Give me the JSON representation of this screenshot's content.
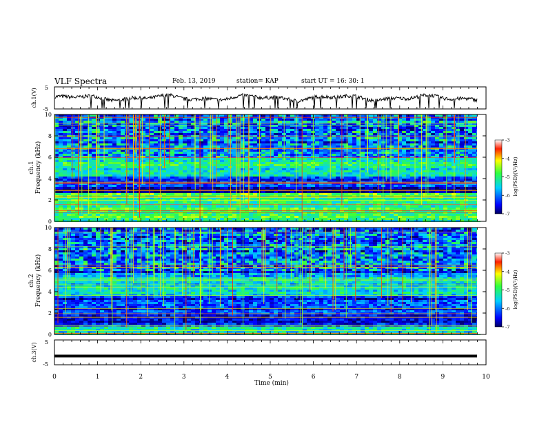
{
  "header": {
    "title": "VLF Spectra",
    "date": "Feb. 13, 2019",
    "station": "station= KAP",
    "start_ut": "start  UT =   16: 30: 1"
  },
  "chart_data": [
    {
      "type": "line",
      "ylabel": "ch.1(V)",
      "ylim": [
        -5,
        5
      ],
      "yticks": [
        "5",
        "-5"
      ],
      "xlim": [
        0,
        10
      ],
      "series": [
        {
          "style": "noisy waveform, amplitude about 1 V around 0 V, occasional spikes to -5 V"
        }
      ]
    },
    {
      "type": "heatmap",
      "ylabel_top": "ch.1",
      "ylabel": "Frequency (kHz)",
      "ylim": [
        0,
        10
      ],
      "yticks": [
        "0",
        "2",
        "4",
        "6",
        "8",
        "10"
      ],
      "xlim": [
        0,
        10
      ],
      "colorbar": {
        "label": "log(PSD)(V²/Hz)",
        "ticks": [
          "-3",
          "-4",
          "-5",
          "-6",
          "-7"
        ],
        "range": [
          -7,
          -3
        ]
      },
      "dominant_bands": [
        {
          "from_khz": 0.0,
          "to_khz": 2.6,
          "level": -5.0
        },
        {
          "from_khz": 2.6,
          "to_khz": 3.3,
          "level": -6.9
        },
        {
          "from_khz": 3.3,
          "to_khz": 4.2,
          "level": -6.3
        },
        {
          "from_khz": 4.2,
          "to_khz": 6.0,
          "level": -5.3
        },
        {
          "from_khz": 6.0,
          "to_khz": 10.0,
          "level": -6.2
        }
      ]
    },
    {
      "type": "heatmap",
      "ylabel_top": "ch.2",
      "ylabel": "Frequency (kHz)",
      "ylim": [
        0,
        10
      ],
      "yticks": [
        "0",
        "2",
        "4",
        "6",
        "8",
        "10"
      ],
      "xlim": [
        0,
        10
      ],
      "colorbar": {
        "label": "log(PSD)(V²/Hz)",
        "ticks": [
          "-3",
          "-4",
          "-5",
          "-6",
          "-7"
        ],
        "range": [
          -7,
          -3
        ]
      },
      "dominant_bands": [
        {
          "from_khz": 0.0,
          "to_khz": 0.8,
          "level": -5.3
        },
        {
          "from_khz": 0.8,
          "to_khz": 3.6,
          "level": -6.4
        },
        {
          "from_khz": 3.6,
          "to_khz": 5.8,
          "level": -5.6
        },
        {
          "from_khz": 5.8,
          "to_khz": 10.0,
          "level": -6.3
        }
      ]
    },
    {
      "type": "line",
      "ylabel": "ch.3(V)",
      "ylim": [
        -5,
        5
      ],
      "yticks": [
        "5",
        "-5"
      ],
      "xlim": [
        0,
        10
      ],
      "xlabel": "Time (min)",
      "xticks": [
        "0",
        "1",
        "2",
        "3",
        "4",
        "5",
        "6",
        "7",
        "8",
        "9",
        "10"
      ],
      "series": [
        {
          "style": "flat thick line at about -1.5 V"
        }
      ]
    }
  ]
}
